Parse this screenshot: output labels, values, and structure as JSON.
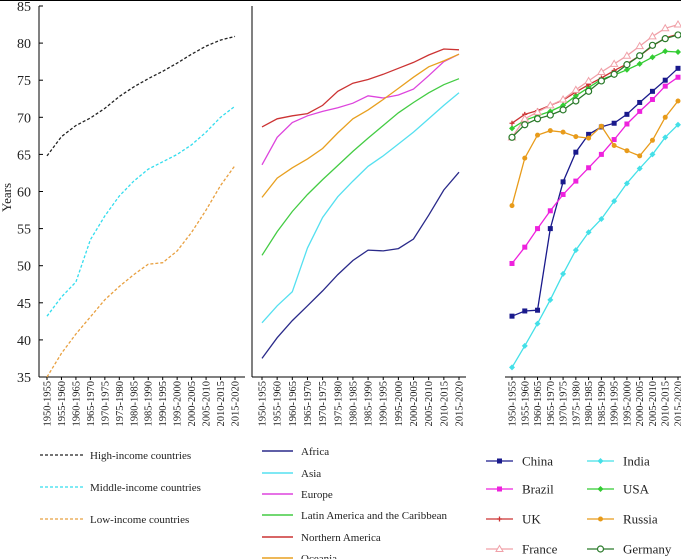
{
  "chart_data": [
    {
      "id": "income",
      "type": "line",
      "ylabel": "Years",
      "ylim": [
        35,
        85
      ],
      "yticks": [
        35,
        40,
        45,
        50,
        55,
        60,
        65,
        70,
        75,
        80,
        85
      ],
      "categories": [
        "1950-1955",
        "1955-1960",
        "1960-1965",
        "1965-1970",
        "1970-1975",
        "1975-1980",
        "1980-1985",
        "1985-1990",
        "1990-1995",
        "1995-2000",
        "2000-2005",
        "2005-2010",
        "2010-2015",
        "2015-2020"
      ],
      "series": [
        {
          "name": "High-income countries",
          "color": "#222222",
          "dash": "3,2",
          "values": [
            64.8,
            67.4,
            68.9,
            69.9,
            71.2,
            72.8,
            74.1,
            75.2,
            76.2,
            77.3,
            78.5,
            79.6,
            80.4,
            80.9
          ]
        },
        {
          "name": "Middle-income countries",
          "color": "#33ddee",
          "dash": "3,2",
          "values": [
            43.2,
            45.8,
            47.8,
            53.5,
            56.7,
            59.4,
            61.4,
            63.0,
            64.0,
            65.0,
            66.3,
            68.0,
            70.0,
            71.5
          ]
        },
        {
          "name": "Low-income countries",
          "color": "#e8a040",
          "dash": "3,2",
          "values": [
            35.0,
            38.2,
            40.8,
            43.1,
            45.4,
            47.2,
            48.8,
            50.2,
            50.4,
            52.0,
            54.5,
            57.5,
            60.8,
            63.5
          ]
        }
      ]
    },
    {
      "id": "regions",
      "type": "line",
      "ylim": [
        35,
        85
      ],
      "categories": [
        "1950-1955",
        "1955-1960",
        "1960-1965",
        "1965-1970",
        "1970-1975",
        "1975-1980",
        "1980-1985",
        "1985-1990",
        "1990-1995",
        "1995-2000",
        "2000-2005",
        "2005-2010",
        "2010-2015",
        "2015-2020"
      ],
      "series": [
        {
          "name": "Africa",
          "color": "#2a2a8a",
          "values": [
            37.5,
            40.3,
            42.6,
            44.6,
            46.6,
            48.8,
            50.7,
            52.1,
            52.0,
            52.3,
            53.6,
            56.8,
            60.2,
            62.6
          ]
        },
        {
          "name": "Asia",
          "color": "#55e0f0",
          "values": [
            42.3,
            44.6,
            46.5,
            52.4,
            56.5,
            59.3,
            61.4,
            63.4,
            64.8,
            66.4,
            68.0,
            69.8,
            71.6,
            73.3
          ]
        },
        {
          "name": "Europe",
          "color": "#dd44dd",
          "values": [
            63.6,
            67.3,
            69.3,
            70.2,
            70.8,
            71.3,
            71.9,
            72.9,
            72.6,
            73.0,
            73.8,
            75.6,
            77.5,
            78.5
          ]
        },
        {
          "name": "Latin America and the Caribbean",
          "color": "#44cc44",
          "values": [
            51.4,
            54.6,
            57.3,
            59.6,
            61.6,
            63.5,
            65.4,
            67.2,
            68.9,
            70.6,
            72.0,
            73.3,
            74.4,
            75.2
          ]
        },
        {
          "name": "Northern America",
          "color": "#cc3333",
          "values": [
            68.7,
            69.8,
            70.2,
            70.5,
            71.6,
            73.5,
            74.6,
            75.1,
            75.8,
            76.6,
            77.4,
            78.4,
            79.2,
            79.1
          ]
        },
        {
          "name": "Oceania",
          "color": "#e8a020",
          "values": [
            59.2,
            61.8,
            63.2,
            64.4,
            65.8,
            67.9,
            69.8,
            71.0,
            72.4,
            73.9,
            75.4,
            76.8,
            77.6,
            78.5
          ]
        }
      ]
    },
    {
      "id": "countries",
      "type": "line",
      "ylim": [
        35,
        85
      ],
      "categories": [
        "1950-1955",
        "1955-1960",
        "1960-1965",
        "1965-1970",
        "1970-1975",
        "1975-1980",
        "1980-1985",
        "1985-1990",
        "1990-1995",
        "1995-2000",
        "2000-2005",
        "2005-2010",
        "2010-2015",
        "2015-2020"
      ],
      "series": [
        {
          "name": "China",
          "color": "#1a1a8c",
          "marker": "square-filled",
          "values": [
            43.2,
            43.9,
            44.0,
            55.0,
            61.3,
            65.3,
            67.7,
            68.7,
            69.2,
            70.4,
            72.0,
            73.5,
            75.0,
            76.6
          ]
        },
        {
          "name": "India",
          "color": "#44e0e8",
          "marker": "diamond-filled",
          "values": [
            36.3,
            39.2,
            42.2,
            45.4,
            48.9,
            52.1,
            54.5,
            56.3,
            58.7,
            61.1,
            63.1,
            65.0,
            67.3,
            69.0
          ]
        },
        {
          "name": "Brazil",
          "color": "#ee22dd",
          "marker": "square-filled",
          "values": [
            50.3,
            52.5,
            55.0,
            57.4,
            59.6,
            61.4,
            63.2,
            65.0,
            67.0,
            69.1,
            70.8,
            72.4,
            74.2,
            75.4
          ]
        },
        {
          "name": "USA",
          "color": "#33cc33",
          "marker": "diamond-filled",
          "values": [
            68.5,
            69.6,
            70.2,
            70.8,
            71.6,
            72.9,
            74.0,
            75.1,
            75.7,
            76.4,
            77.2,
            78.1,
            78.9,
            78.8
          ]
        },
        {
          "name": "UK",
          "color": "#cc3333",
          "marker": "cross",
          "values": [
            69.2,
            70.4,
            70.9,
            71.6,
            72.3,
            73.4,
            74.4,
            75.3,
            76.3,
            77.2,
            78.3,
            79.6,
            80.7,
            81.2
          ]
        },
        {
          "name": "Russia",
          "color": "#e89b1a",
          "marker": "circle-filled",
          "values": [
            58.1,
            64.5,
            67.6,
            68.2,
            68.0,
            67.4,
            67.2,
            68.8,
            66.2,
            65.5,
            64.8,
            66.9,
            70.0,
            72.2
          ]
        },
        {
          "name": "France",
          "color": "#f0a0a8",
          "marker": "triangle-open",
          "values": [
            67.3,
            69.8,
            70.7,
            71.6,
            72.4,
            73.7,
            74.9,
            76.1,
            77.2,
            78.3,
            79.6,
            80.9,
            82.0,
            82.5
          ]
        },
        {
          "name": "Germany",
          "color": "#2a7a2a",
          "marker": "circle-open",
          "values": [
            67.3,
            69.0,
            69.8,
            70.3,
            71.0,
            72.2,
            73.5,
            74.9,
            75.8,
            77.1,
            78.3,
            79.7,
            80.6,
            81.1
          ]
        }
      ]
    }
  ]
}
